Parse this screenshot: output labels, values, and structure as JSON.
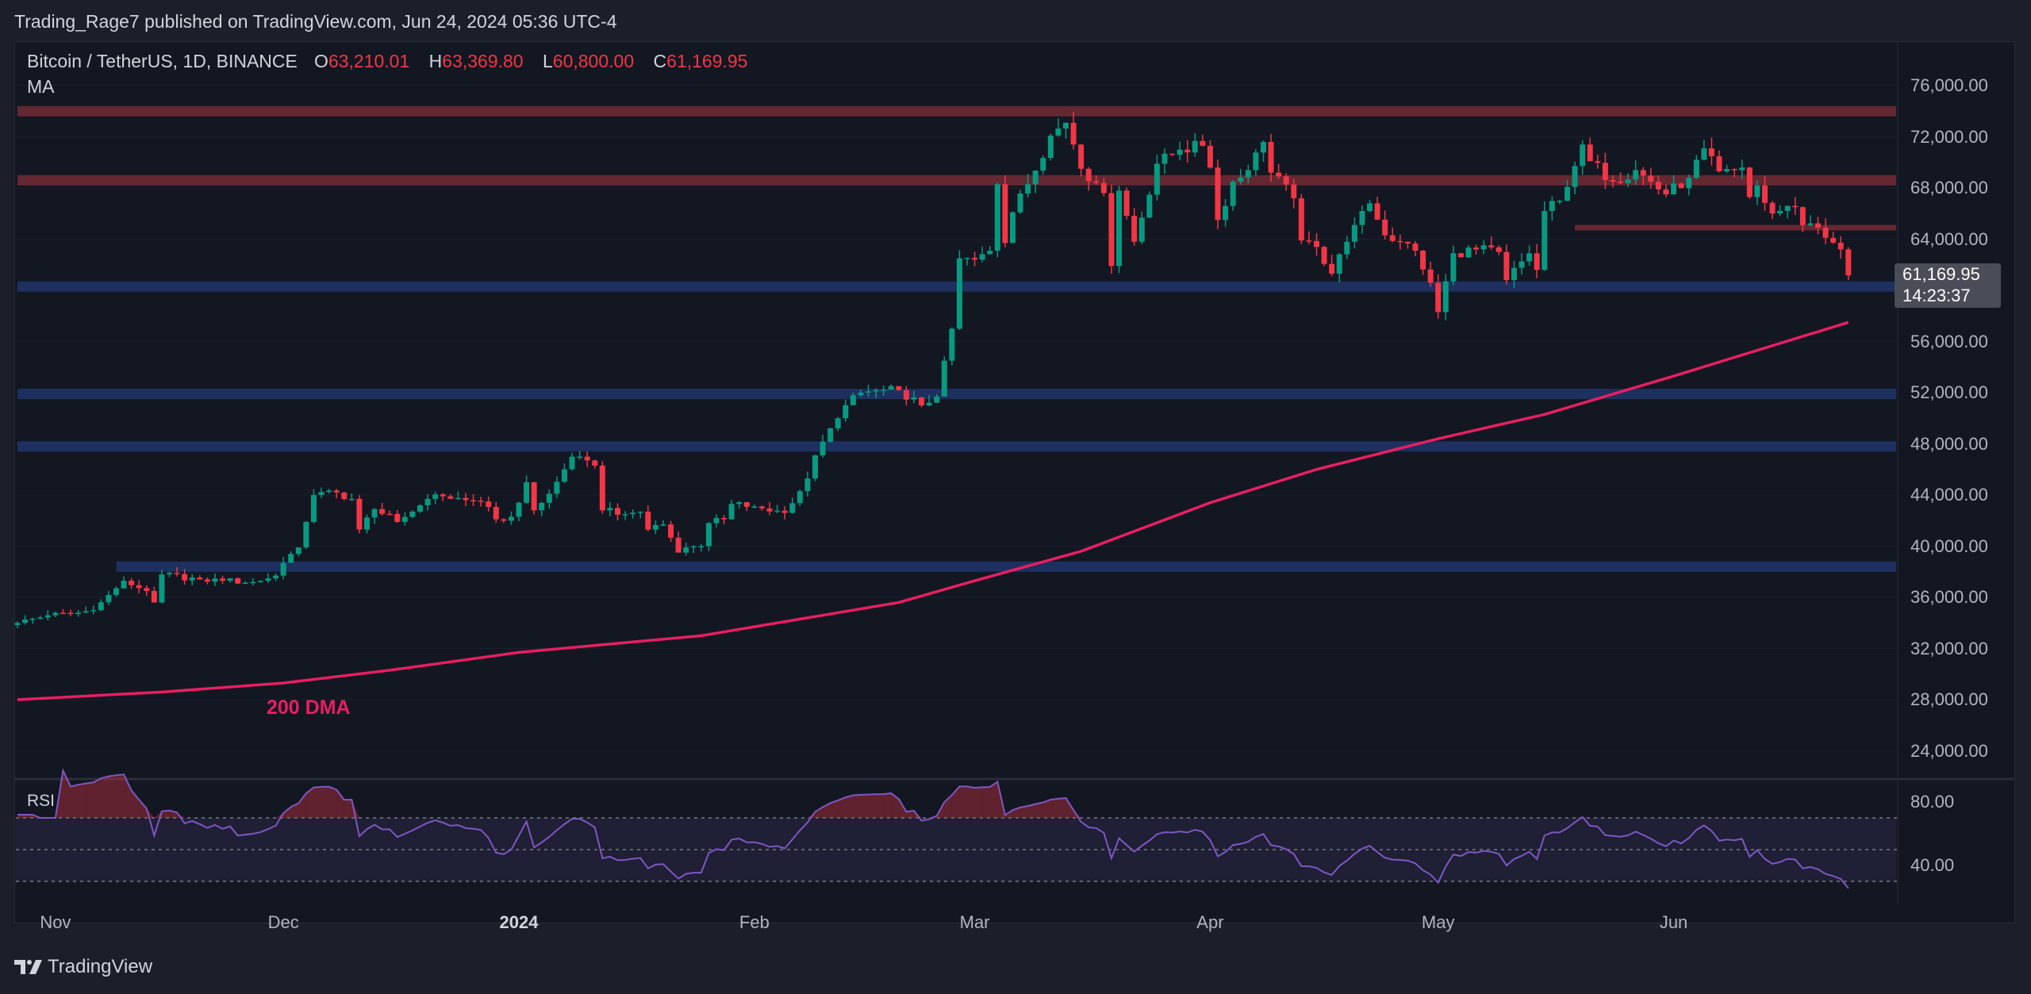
{
  "header": {
    "published": "Trading_Rage7 published on TradingView.com, Jun 24, 2024 05:36 UTC-4"
  },
  "legend": {
    "symbol": "Bitcoin / TetherUS, 1D, BINANCE",
    "o_label": "O",
    "o": "63,210.01",
    "h_label": "H",
    "h": "63,369.80",
    "l_label": "L",
    "l": "60,800.00",
    "c_label": "C",
    "c": "61,169.95",
    "indicator": "MA"
  },
  "last_price": {
    "price": "61,169.95",
    "countdown": "14:23:37"
  },
  "ma_annotation": "200 DMA",
  "rsi": {
    "label": "RSI",
    "axis_labels": [
      "80.00",
      "40.00"
    ],
    "levels": [
      70,
      50,
      30
    ]
  },
  "footer": {
    "brand": "TradingView"
  },
  "colors": {
    "up": "#089981",
    "down": "#f23645",
    "ma": "#e91e63",
    "rsi": "#7e57c2",
    "resistance": "#6d2a33",
    "support": "#1f3366",
    "background": "#131722"
  },
  "chart_data": {
    "type": "candlestick",
    "ylim": [
      22000,
      78000
    ],
    "y_ticks": [
      "76,000.00",
      "72,000.00",
      "68,000.00",
      "64,000.00",
      "56,000.00",
      "52,000.00",
      "48,000.00",
      "44,000.00",
      "40,000.00",
      "36,000.00",
      "32,000.00",
      "28,000.00",
      "24,000.00"
    ],
    "x_ticks": [
      {
        "label": "Nov",
        "date": "2023-11-01"
      },
      {
        "label": "Dec",
        "date": "2023-12-01"
      },
      {
        "label": "2024",
        "date": "2024-01-01"
      },
      {
        "label": "Feb",
        "date": "2024-02-01"
      },
      {
        "label": "Mar",
        "date": "2024-03-01"
      },
      {
        "label": "Apr",
        "date": "2024-04-01"
      },
      {
        "label": "May",
        "date": "2024-05-01"
      },
      {
        "label": "Jun",
        "date": "2024-06-01"
      }
    ],
    "x_range": [
      "2023-10-27",
      "2024-06-24"
    ],
    "last_candle": {
      "open": 63210.01,
      "high": 63369.8,
      "low": 60800.0,
      "close": 61169.95
    },
    "close_anchors": [
      [
        "2023-10-27",
        34000
      ],
      [
        "2023-10-31",
        34600
      ],
      [
        "2023-11-03",
        34700
      ],
      [
        "2023-11-06",
        35000
      ],
      [
        "2023-11-09",
        36700
      ],
      [
        "2023-11-10",
        37300
      ],
      [
        "2023-11-13",
        36500
      ],
      [
        "2023-11-14",
        35600
      ],
      [
        "2023-11-15",
        37800
      ],
      [
        "2023-11-20",
        37400
      ],
      [
        "2023-11-23",
        37300
      ],
      [
        "2023-11-27",
        37200
      ],
      [
        "2023-11-30",
        37700
      ],
      [
        "2023-12-01",
        38700
      ],
      [
        "2023-12-02",
        39400
      ],
      [
        "2023-12-03",
        39900
      ],
      [
        "2023-12-04",
        41900
      ],
      [
        "2023-12-05",
        44000
      ],
      [
        "2023-12-08",
        44200
      ],
      [
        "2023-12-10",
        43700
      ],
      [
        "2023-12-11",
        41300
      ],
      [
        "2023-12-13",
        42900
      ],
      [
        "2023-12-16",
        41900
      ],
      [
        "2023-12-18",
        42700
      ],
      [
        "2023-12-20",
        43700
      ],
      [
        "2023-12-22",
        43900
      ],
      [
        "2023-12-25",
        43600
      ],
      [
        "2023-12-27",
        43500
      ],
      [
        "2023-12-29",
        42100
      ],
      [
        "2023-12-31",
        42300
      ],
      [
        "2024-01-02",
        45000
      ],
      [
        "2024-01-03",
        42800
      ],
      [
        "2024-01-05",
        44100
      ],
      [
        "2024-01-08",
        47000
      ],
      [
        "2024-01-10",
        46700
      ],
      [
        "2024-01-11",
        46300
      ],
      [
        "2024-01-12",
        42800
      ],
      [
        "2024-01-15",
        42500
      ],
      [
        "2024-01-17",
        42700
      ],
      [
        "2024-01-18",
        41300
      ],
      [
        "2024-01-20",
        41700
      ],
      [
        "2024-01-22",
        39500
      ],
      [
        "2024-01-23",
        39900
      ],
      [
        "2024-01-25",
        40000
      ],
      [
        "2024-01-26",
        41800
      ],
      [
        "2024-01-28",
        42100
      ],
      [
        "2024-01-29",
        43300
      ],
      [
        "2024-02-01",
        43100
      ],
      [
        "2024-02-05",
        42600
      ],
      [
        "2024-02-07",
        44300
      ],
      [
        "2024-02-08",
        45300
      ],
      [
        "2024-02-09",
        47100
      ],
      [
        "2024-02-12",
        50000
      ],
      [
        "2024-02-14",
        51800
      ],
      [
        "2024-02-16",
        52100
      ],
      [
        "2024-02-20",
        52200
      ],
      [
        "2024-02-23",
        51000
      ],
      [
        "2024-02-25",
        51700
      ],
      [
        "2024-02-26",
        54500
      ],
      [
        "2024-02-27",
        57000
      ],
      [
        "2024-02-28",
        62500
      ],
      [
        "2024-03-01",
        62400
      ],
      [
        "2024-03-03",
        63100
      ],
      [
        "2024-03-04",
        68300
      ],
      [
        "2024-03-05",
        63700
      ],
      [
        "2024-03-06",
        66100
      ],
      [
        "2024-03-08",
        68300
      ],
      [
        "2024-03-11",
        72100
      ],
      [
        "2024-03-13",
        73100
      ],
      [
        "2024-03-14",
        71400
      ],
      [
        "2024-03-15",
        69500
      ],
      [
        "2024-03-17",
        68400
      ],
      [
        "2024-03-18",
        67600
      ],
      [
        "2024-03-19",
        61900
      ],
      [
        "2024-03-20",
        67800
      ],
      [
        "2024-03-22",
        63800
      ],
      [
        "2024-03-25",
        69900
      ],
      [
        "2024-03-28",
        71000
      ],
      [
        "2024-03-31",
        71300
      ],
      [
        "2024-04-01",
        69600
      ],
      [
        "2024-04-02",
        65500
      ],
      [
        "2024-04-04",
        68500
      ],
      [
        "2024-04-06",
        69400
      ],
      [
        "2024-04-08",
        71600
      ],
      [
        "2024-04-09",
        69200
      ],
      [
        "2024-04-12",
        67200
      ],
      [
        "2024-04-13",
        63900
      ],
      [
        "2024-04-15",
        63400
      ],
      [
        "2024-04-17",
        61300
      ],
      [
        "2024-04-19",
        63800
      ],
      [
        "2024-04-22",
        66800
      ],
      [
        "2024-04-24",
        64300
      ],
      [
        "2024-04-26",
        63800
      ],
      [
        "2024-04-28",
        63100
      ],
      [
        "2024-04-30",
        60600
      ],
      [
        "2024-05-01",
        58300
      ],
      [
        "2024-05-03",
        62900
      ],
      [
        "2024-05-06",
        63200
      ],
      [
        "2024-05-09",
        63000
      ],
      [
        "2024-05-10",
        60800
      ],
      [
        "2024-05-13",
        62900
      ],
      [
        "2024-05-14",
        61600
      ],
      [
        "2024-05-15",
        66200
      ],
      [
        "2024-05-17",
        67000
      ],
      [
        "2024-05-20",
        71400
      ],
      [
        "2024-05-21",
        70100
      ],
      [
        "2024-05-24",
        68500
      ],
      [
        "2024-05-27",
        69400
      ],
      [
        "2024-05-31",
        67500
      ],
      [
        "2024-06-03",
        68800
      ],
      [
        "2024-06-05",
        71100
      ],
      [
        "2024-06-07",
        69300
      ],
      [
        "2024-06-10",
        69600
      ],
      [
        "2024-06-11",
        67300
      ],
      [
        "2024-06-12",
        68200
      ],
      [
        "2024-06-14",
        66000
      ],
      [
        "2024-06-16",
        66600
      ],
      [
        "2024-06-17",
        66500
      ],
      [
        "2024-06-18",
        65100
      ],
      [
        "2024-06-20",
        64900
      ],
      [
        "2024-06-21",
        64100
      ],
      [
        "2024-06-23",
        63200
      ],
      [
        "2024-06-24",
        61170
      ]
    ],
    "ma200": [
      [
        "2023-10-27",
        28000
      ],
      [
        "2023-11-15",
        28600
      ],
      [
        "2023-12-01",
        29300
      ],
      [
        "2023-12-15",
        30300
      ],
      [
        "2024-01-01",
        31700
      ],
      [
        "2024-01-25",
        33000
      ],
      [
        "2024-02-20",
        35600
      ],
      [
        "2024-03-01",
        37300
      ],
      [
        "2024-03-15",
        39600
      ],
      [
        "2024-04-01",
        43400
      ],
      [
        "2024-04-15",
        46000
      ],
      [
        "2024-05-01",
        48400
      ],
      [
        "2024-05-15",
        50300
      ],
      [
        "2024-06-01",
        53300
      ],
      [
        "2024-06-24",
        57500
      ]
    ],
    "zones": [
      {
        "kind": "resistance",
        "price": 74000,
        "from": "2023-10-27"
      },
      {
        "kind": "resistance",
        "price": 68600,
        "from": "2023-10-27"
      },
      {
        "kind": "resistance",
        "price": 64900,
        "from": "2024-05-19",
        "thin": true
      },
      {
        "kind": "support",
        "price": 60300,
        "from": "2023-10-27"
      },
      {
        "kind": "support",
        "price": 51900,
        "from": "2023-10-27"
      },
      {
        "kind": "support",
        "price": 47800,
        "from": "2023-10-27"
      },
      {
        "kind": "support",
        "price": 38400,
        "from": "2023-11-09"
      }
    ]
  }
}
